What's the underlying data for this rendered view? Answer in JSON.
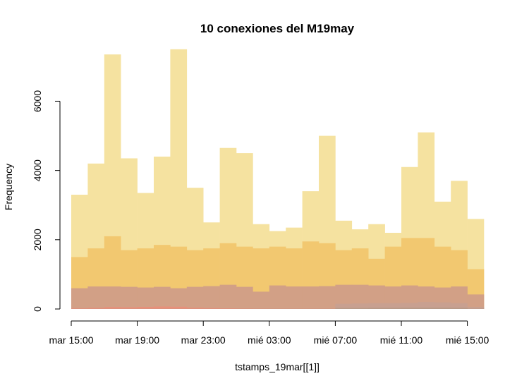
{
  "chart_data": {
    "type": "histogram",
    "title": "10 conexiones del M19may",
    "xlabel": "tstamps_19mar[[1]]",
    "ylabel": "Frequency",
    "x_ticks": [
      "mar 15:00",
      "mar 19:00",
      "mar 23:00",
      "mié 03:00",
      "mié 07:00",
      "mié 11:00",
      "mié 15:00"
    ],
    "x_tick_hours": [
      0,
      4,
      8,
      12,
      16,
      20,
      24
    ],
    "y_ticks": [
      0,
      2000,
      4000,
      6000
    ],
    "ylim": [
      0,
      7700
    ],
    "bin_width_hours": 1,
    "bin_start_hour": 0,
    "bin_count": 25,
    "grid": false,
    "series": [
      {
        "color": "#f5e2a0",
        "values": [
          3300,
          4200,
          7350,
          4350,
          3350,
          4400,
          7500,
          3500,
          2500,
          4650,
          4500,
          2450,
          2250,
          2350,
          3400,
          5000,
          2550,
          2300,
          2450,
          2200,
          4100,
          5100,
          3100,
          3700,
          2600
        ]
      },
      {
        "color": "#f2c870",
        "values": [
          1500,
          1750,
          2100,
          1700,
          1750,
          1850,
          1800,
          1700,
          1750,
          1900,
          1800,
          1750,
          1800,
          1750,
          1950,
          1900,
          1700,
          1750,
          1450,
          1800,
          2050,
          2050,
          1800,
          1700,
          1150
        ]
      },
      {
        "color": "#d2a086",
        "values": [
          600,
          650,
          650,
          640,
          620,
          640,
          600,
          640,
          660,
          700,
          640,
          500,
          680,
          650,
          650,
          660,
          700,
          700,
          680,
          650,
          680,
          650,
          620,
          650,
          420
        ]
      },
      {
        "color": "#c8a090",
        "values": [
          10,
          12,
          15,
          12,
          12,
          15,
          15,
          12,
          12,
          12,
          10,
          10,
          10,
          10,
          10,
          12,
          150,
          160,
          170,
          170,
          180,
          200,
          190,
          170,
          60
        ]
      },
      {
        "color": "#e8907a",
        "values": [
          25,
          35,
          55,
          50,
          60,
          70,
          65,
          40,
          30,
          20,
          15,
          12,
          10,
          10,
          10,
          10,
          8,
          8,
          8,
          8,
          8,
          8,
          8,
          8,
          5
        ]
      },
      {
        "color": "#b89a88",
        "values": [
          5,
          5,
          5,
          5,
          5,
          5,
          5,
          5,
          5,
          5,
          5,
          5,
          5,
          5,
          5,
          5,
          30,
          30,
          35,
          35,
          40,
          40,
          40,
          35,
          10
        ]
      }
    ]
  }
}
